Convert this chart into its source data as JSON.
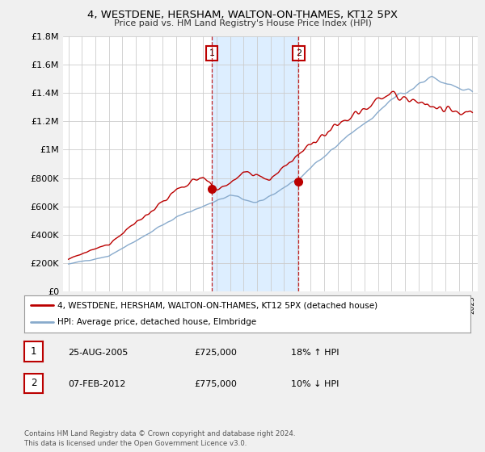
{
  "title": "4, WESTDENE, HERSHAM, WALTON-ON-THAMES, KT12 5PX",
  "subtitle": "Price paid vs. HM Land Registry's House Price Index (HPI)",
  "ylim": [
    0,
    1800000
  ],
  "yticks": [
    0,
    200000,
    400000,
    600000,
    800000,
    1000000,
    1200000,
    1400000,
    1600000,
    1800000
  ],
  "ytick_labels": [
    "£0",
    "£200K",
    "£400K",
    "£600K",
    "£800K",
    "£1M",
    "£1.2M",
    "£1.4M",
    "£1.6M",
    "£1.8M"
  ],
  "fig_bg_color": "#f0f0f0",
  "plot_bg": "#ffffff",
  "red_color": "#bb0000",
  "blue_color": "#88aacc",
  "shade_color": "#ddeeff",
  "marker1_year": 2005.65,
  "marker2_year": 2012.1,
  "marker1_value": 725000,
  "marker2_value": 775000,
  "legend_line1": "4, WESTDENE, HERSHAM, WALTON-ON-THAMES, KT12 5PX (detached house)",
  "legend_line2": "HPI: Average price, detached house, Elmbridge",
  "table_row1": [
    "1",
    "25-AUG-2005",
    "£725,000",
    "18% ↑ HPI"
  ],
  "table_row2": [
    "2",
    "07-FEB-2012",
    "£775,000",
    "10% ↓ HPI"
  ],
  "footnote": "Contains HM Land Registry data © Crown copyright and database right 2024.\nThis data is licensed under the Open Government Licence v3.0.",
  "grid_color": "#cccccc",
  "spine_color": "#aaaaaa"
}
